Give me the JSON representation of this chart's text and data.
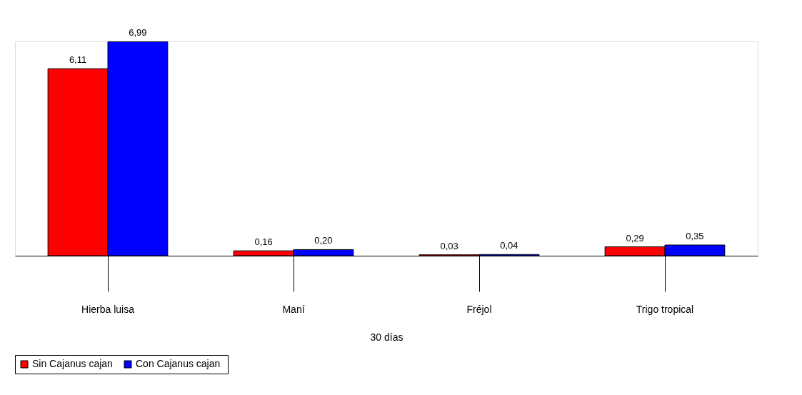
{
  "chart_data": {
    "type": "bar",
    "categories": [
      "Hierba luisa",
      "Maní",
      "Fréjol",
      "Trigo tropical"
    ],
    "xlabel": "30 días",
    "series": [
      {
        "name": "Sin Cajanus  cajan",
        "color": "#ff0000",
        "values": [
          6.11,
          0.16,
          0.03,
          0.29
        ],
        "value_labels": [
          "6,11",
          "0,16",
          "0,03",
          "0,29"
        ]
      },
      {
        "name": "Con Cajanus  cajan",
        "color": "#0000ff",
        "values": [
          6.99,
          0.2,
          0.04,
          0.35
        ],
        "value_labels": [
          "6,99",
          "0,20",
          "0,04",
          "0,35"
        ]
      }
    ],
    "legend": "bottom",
    "grid": false
  }
}
